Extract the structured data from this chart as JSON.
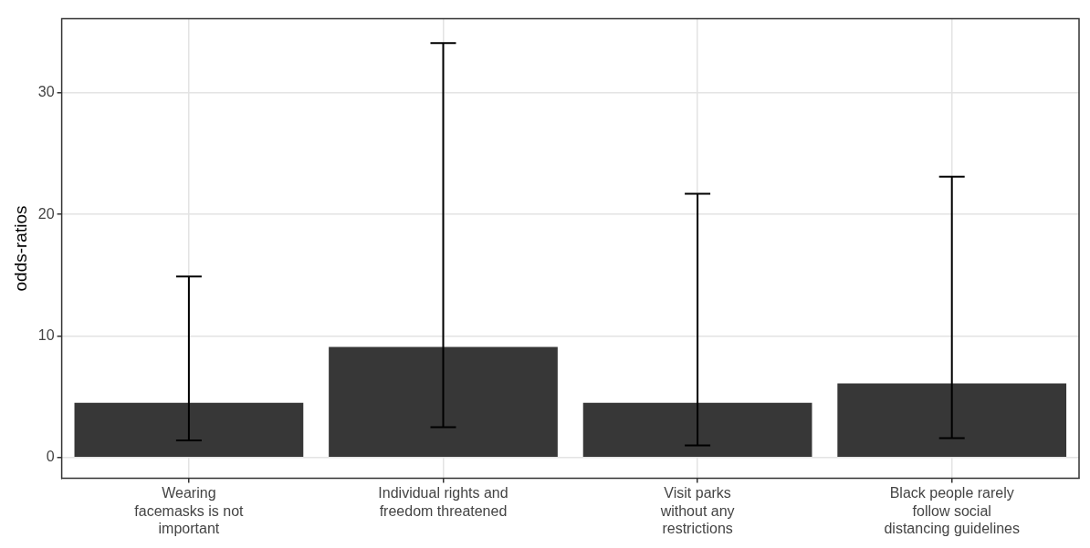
{
  "chart_data": {
    "type": "bar",
    "ylabel": "odds-ratios",
    "categories": [
      "Wearing\nfacemasks is not\nimportant",
      "Individual rights and\nfreedom threatened",
      "Visit parks\nwithout any\nrestrictions",
      "Black people rarely\nfollow social\ndistancing guidelines"
    ],
    "values": [
      4.5,
      9.1,
      4.5,
      6.1
    ],
    "errors": [
      [
        1.4,
        14.9
      ],
      [
        2.5,
        34.1
      ],
      [
        1.0,
        21.7
      ],
      [
        1.6,
        23.1
      ]
    ],
    "color": "#373737",
    "ylim": [
      -1.7,
      36.1
    ],
    "yticks": [
      0,
      10,
      20,
      30
    ],
    "grid": true,
    "legend": false
  }
}
